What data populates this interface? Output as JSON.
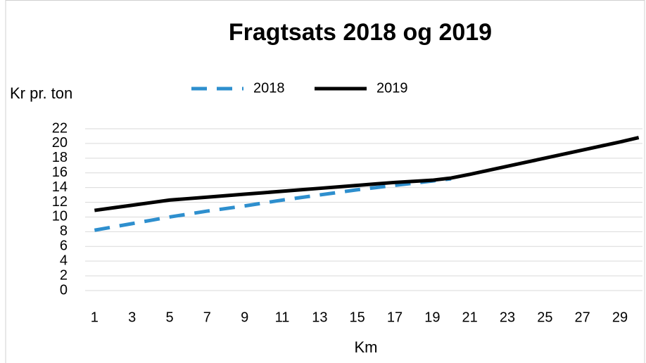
{
  "chart_data": {
    "type": "line",
    "title": "Fragtsats 2018 og 2019",
    "y_label": "Kr pr. ton",
    "x_label": "Km",
    "x": [
      1,
      2,
      3,
      4,
      5,
      6,
      7,
      8,
      9,
      10,
      11,
      12,
      13,
      14,
      15,
      16,
      17,
      18,
      19,
      20,
      21,
      22,
      23,
      24,
      25,
      26,
      27,
      28,
      29,
      30
    ],
    "series": [
      {
        "name": "2018",
        "color": "#2e8fce",
        "line_style": "dashed",
        "values": [
          8.2,
          8.65,
          9.1,
          9.55,
          10.0,
          10.4,
          10.8,
          11.15,
          11.5,
          11.9,
          12.3,
          12.65,
          13.0,
          13.35,
          13.7,
          14.0,
          14.3,
          14.6,
          14.9,
          15.2,
          null,
          null,
          null,
          null,
          null,
          null,
          null,
          null,
          null,
          null
        ]
      },
      {
        "name": "2019",
        "color": "#000000",
        "line_style": "solid",
        "values": [
          10.9,
          11.25,
          11.6,
          11.95,
          12.3,
          12.5,
          12.7,
          12.9,
          13.1,
          13.3,
          13.5,
          13.7,
          13.9,
          14.1,
          14.3,
          14.5,
          14.7,
          14.85,
          15.0,
          15.3,
          15.8,
          16.35,
          16.9,
          17.45,
          18.0,
          18.55,
          19.1,
          19.65,
          20.2,
          20.8
        ]
      }
    ],
    "xlim": [
      0.5,
      30.2
    ],
    "xticks": [
      1,
      3,
      5,
      7,
      9,
      11,
      13,
      15,
      17,
      19,
      21,
      23,
      25,
      27,
      29
    ],
    "ylim": [
      0,
      22
    ],
    "yticks": [
      0,
      2,
      4,
      6,
      8,
      10,
      12,
      14,
      16,
      18,
      20,
      22
    ],
    "grid": true,
    "legend": "top"
  }
}
